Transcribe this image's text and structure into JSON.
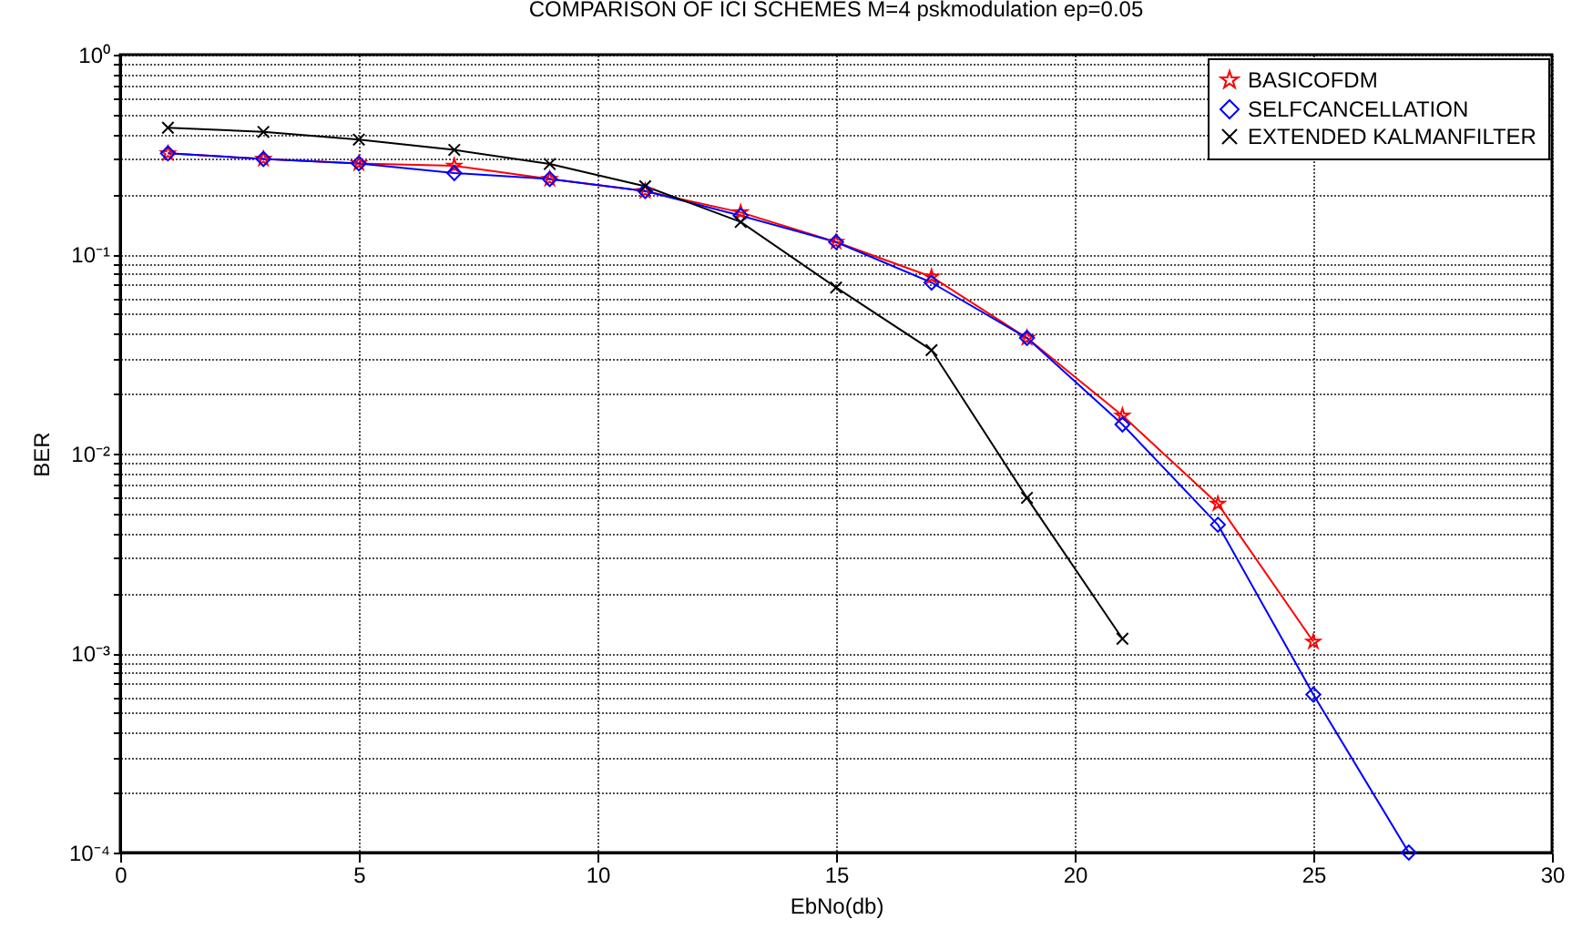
{
  "chart_data": {
    "type": "line",
    "title": "COMPARISON OF ICI SCHEMES  M=4  pskmodulation ep=0.05",
    "xlabel": "EbNo(db)",
    "ylabel": "BER",
    "log": "y",
    "grid": true,
    "legend": "top right",
    "line_style": "solid",
    "xlim": [
      0,
      30
    ],
    "xticks": [
      0,
      5,
      10,
      15,
      20,
      25,
      30
    ],
    "ylim": [
      0.0001,
      1
    ],
    "yticks": [
      {
        "value": 0.0001,
        "label": "10⁻⁴"
      },
      {
        "value": 0.0002,
        "label": null
      },
      {
        "value": 0.0003,
        "label": null
      },
      {
        "value": 0.0004,
        "label": null
      },
      {
        "value": 0.0005,
        "label": null
      },
      {
        "value": 0.0006,
        "label": null
      },
      {
        "value": 0.0007,
        "label": null
      },
      {
        "value": 0.0008,
        "label": null
      },
      {
        "value": 0.0009,
        "label": null
      },
      {
        "value": 0.001,
        "label": "10⁻³"
      },
      {
        "value": 0.002,
        "label": null
      },
      {
        "value": 0.003,
        "label": null
      },
      {
        "value": 0.004,
        "label": null
      },
      {
        "value": 0.005,
        "label": null
      },
      {
        "value": 0.006,
        "label": null
      },
      {
        "value": 0.007,
        "label": null
      },
      {
        "value": 0.008,
        "label": null
      },
      {
        "value": 0.009,
        "label": null
      },
      {
        "value": 0.01,
        "label": "10⁻²"
      },
      {
        "value": 0.02,
        "label": null
      },
      {
        "value": 0.03,
        "label": null
      },
      {
        "value": 0.04,
        "label": null
      },
      {
        "value": 0.05,
        "label": null
      },
      {
        "value": 0.06,
        "label": null
      },
      {
        "value": 0.07,
        "label": null
      },
      {
        "value": 0.08,
        "label": null
      },
      {
        "value": 0.09,
        "label": null
      },
      {
        "value": 0.1,
        "label": "10⁻¹"
      },
      {
        "value": 0.2,
        "label": null
      },
      {
        "value": 0.3,
        "label": null
      },
      {
        "value": 0.4,
        "label": null
      },
      {
        "value": 0.5,
        "label": null
      },
      {
        "value": 0.6,
        "label": null
      },
      {
        "value": 0.7,
        "label": null
      },
      {
        "value": 0.8,
        "label": null
      },
      {
        "value": 0.9,
        "label": null
      },
      {
        "value": 1,
        "label": "10⁰"
      }
    ],
    "series": [
      {
        "name": "BASICOFDM",
        "color": "#ff0000",
        "marker": "star",
        "x": [
          1,
          3,
          5,
          7,
          9,
          11,
          13,
          15,
          17,
          19,
          21,
          23,
          25
        ],
        "values": [
          0.32,
          0.3,
          0.285,
          0.277,
          0.238,
          0.207,
          0.162,
          0.115,
          0.077,
          0.038,
          0.0155,
          0.0056,
          0.00114
        ]
      },
      {
        "name": "SELFCANCELLATION",
        "color": "#0000ff",
        "marker": "diamond",
        "x": [
          1,
          3,
          5,
          7,
          9,
          11,
          13,
          15,
          17,
          19,
          21,
          23,
          25,
          27
        ],
        "values": [
          0.32,
          0.3,
          0.285,
          0.255,
          0.238,
          0.207,
          0.156,
          0.115,
          0.072,
          0.038,
          0.014,
          0.0044,
          0.00062,
          0.0001
        ]
      },
      {
        "name": "EXTENDED KALMANFILTER",
        "color": "#000000",
        "marker": "cross",
        "x": [
          1,
          3,
          5,
          7,
          9,
          11,
          13,
          15,
          17,
          19,
          21
        ],
        "values": [
          0.43,
          0.41,
          0.375,
          0.333,
          0.283,
          0.219,
          0.145,
          0.068,
          0.033,
          0.006,
          0.00118
        ]
      }
    ]
  }
}
